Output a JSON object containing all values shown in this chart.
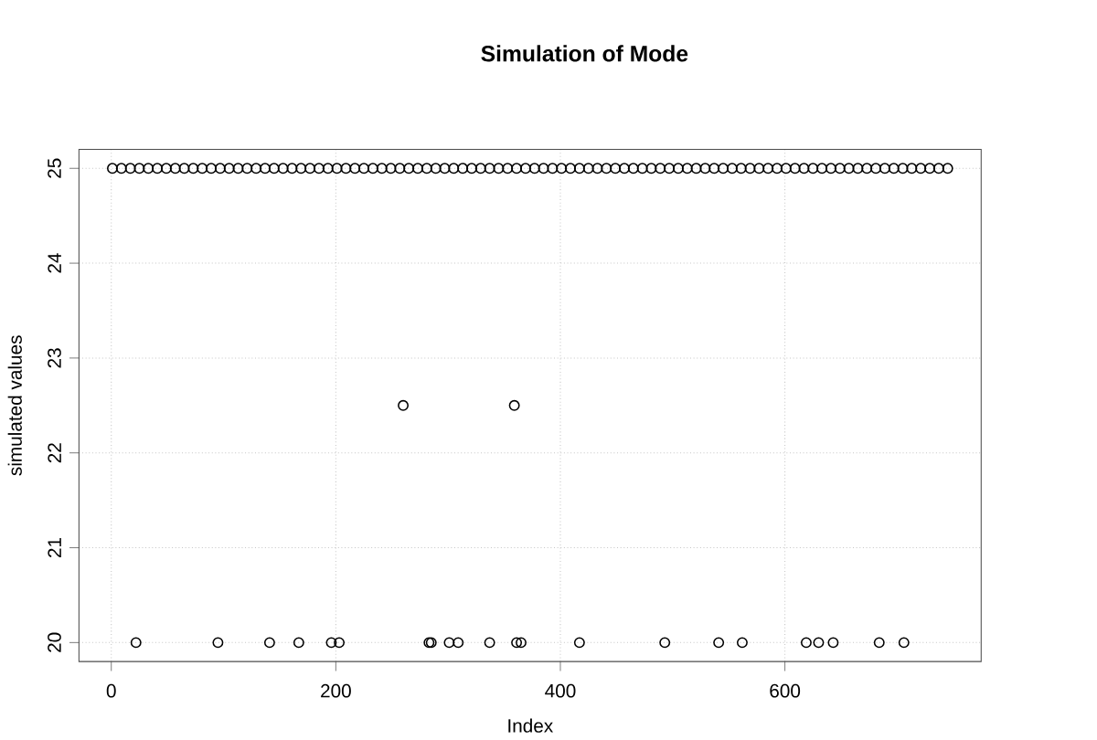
{
  "chart_data": {
    "type": "scatter",
    "title": "Simulation of Mode",
    "xlabel": "Index",
    "ylabel": "simulated values",
    "series": [
      {
        "color": "#000000",
        "x": [
          1,
          9,
          17,
          25,
          33,
          41,
          49,
          57,
          65,
          73,
          81,
          89,
          97,
          105,
          113,
          121,
          129,
          137,
          145,
          153,
          161,
          169,
          177,
          185,
          193,
          201,
          209,
          217,
          225,
          233,
          241,
          249,
          257,
          265,
          273,
          281,
          289,
          297,
          305,
          313,
          321,
          329,
          337,
          345,
          353,
          361,
          369,
          377,
          385,
          393,
          401,
          409,
          417,
          425,
          433,
          441,
          449,
          457,
          465,
          473,
          481,
          489,
          497,
          505,
          513,
          521,
          529,
          537,
          545,
          553,
          561,
          569,
          577,
          585,
          593,
          601,
          609,
          617,
          625,
          633,
          641,
          649,
          657,
          665,
          673,
          681,
          689,
          697,
          705,
          713,
          721,
          729,
          737,
          745
        ],
        "values": [
          25,
          25,
          25,
          25,
          25,
          25,
          25,
          25,
          25,
          25,
          25,
          25,
          25,
          25,
          25,
          25,
          25,
          25,
          25,
          25,
          25,
          25,
          25,
          25,
          25,
          25,
          25,
          25,
          25,
          25,
          25,
          25,
          25,
          25,
          25,
          25,
          25,
          25,
          25,
          25,
          25,
          25,
          25,
          25,
          25,
          25,
          25,
          25,
          25,
          25,
          25,
          25,
          25,
          25,
          25,
          25,
          25,
          25,
          25,
          25,
          25,
          25,
          25,
          25,
          25,
          25,
          25,
          25,
          25,
          25,
          25,
          25,
          25,
          25,
          25,
          25,
          25,
          25,
          25,
          25,
          25,
          25,
          25,
          25,
          25,
          25,
          25,
          25,
          25,
          25,
          25,
          25,
          25,
          25
        ]
      },
      {
        "color": "#000000",
        "x": [
          260,
          359
        ],
        "values": [
          22.5,
          22.5
        ]
      },
      {
        "color": "#000000",
        "x": [
          22,
          95,
          141,
          167,
          196,
          203,
          283,
          285,
          301,
          309,
          337,
          361,
          365,
          417,
          493,
          541,
          562,
          619,
          630,
          643,
          684,
          706
        ],
        "values": [
          20,
          20,
          20,
          20,
          20,
          20,
          20,
          20,
          20,
          20,
          20,
          20,
          20,
          20,
          20,
          20,
          20,
          20,
          20,
          20,
          20,
          20
        ]
      }
    ],
    "xlim": [
      -28.8,
      774.8
    ],
    "ylim": [
      19.8,
      25.2
    ],
    "xticks": [
      0,
      200,
      400,
      600
    ],
    "yticks": [
      20,
      21,
      22,
      23,
      24,
      25
    ],
    "grid": true,
    "marker": "circle"
  }
}
